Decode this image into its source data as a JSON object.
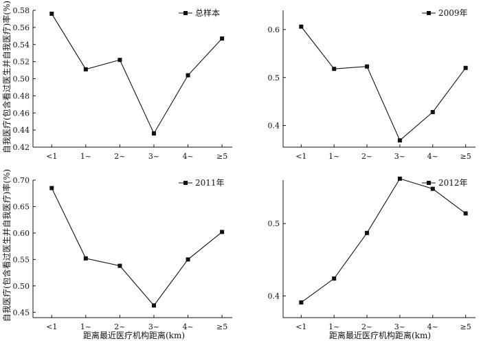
{
  "figure": {
    "y_axis_title": "自我医疗(包含看过医生并自我医疗)率(%)",
    "x_axis_title": "距离最近医疗机构距离(km)"
  },
  "chart_data": [
    {
      "type": "line",
      "legend": "总样本",
      "legend_position": "top-right",
      "categories": [
        "<1",
        "1~",
        "2~",
        "3~",
        "4~",
        "≥5"
      ],
      "values": [
        0.576,
        0.511,
        0.522,
        0.436,
        0.504,
        0.547
      ],
      "ylim": [
        0.42,
        0.58
      ],
      "yticks": [
        "0.42",
        "0.44",
        "0.46",
        "0.48",
        "0.50",
        "0.52",
        "0.54",
        "0.56",
        "0.58"
      ],
      "grid": false
    },
    {
      "type": "line",
      "legend": "2009年",
      "legend_position": "top-right",
      "categories": [
        "<1",
        "1~",
        "2~",
        "3~",
        "4~",
        "≥5"
      ],
      "values": [
        0.606,
        0.518,
        0.523,
        0.369,
        0.428,
        0.52
      ],
      "ylim": [
        0.355,
        0.64
      ],
      "yticks": [
        "0.4",
        "0.5",
        "0.6"
      ],
      "grid": false
    },
    {
      "type": "line",
      "legend": "2011年",
      "legend_position": "top-right",
      "categories": [
        "<1",
        "1~",
        "2~",
        "3~",
        "4~",
        "≥5"
      ],
      "values": [
        0.685,
        0.552,
        0.538,
        0.463,
        0.55,
        0.602
      ],
      "ylim": [
        0.44,
        0.7
      ],
      "yticks": [
        "0.45",
        "0.50",
        "0.55",
        "0.60",
        "0.65",
        "0.70"
      ],
      "grid": false
    },
    {
      "type": "line",
      "legend": "2012年",
      "legend_position": "top-right",
      "categories": [
        "<1",
        "1~",
        "2~",
        "3~",
        "4~",
        "≥5"
      ],
      "values": [
        0.391,
        0.424,
        0.487,
        0.562,
        0.548,
        0.514
      ],
      "ylim": [
        0.37,
        0.56
      ],
      "yticks": [
        "0.4",
        "0.5"
      ],
      "grid": false
    }
  ]
}
